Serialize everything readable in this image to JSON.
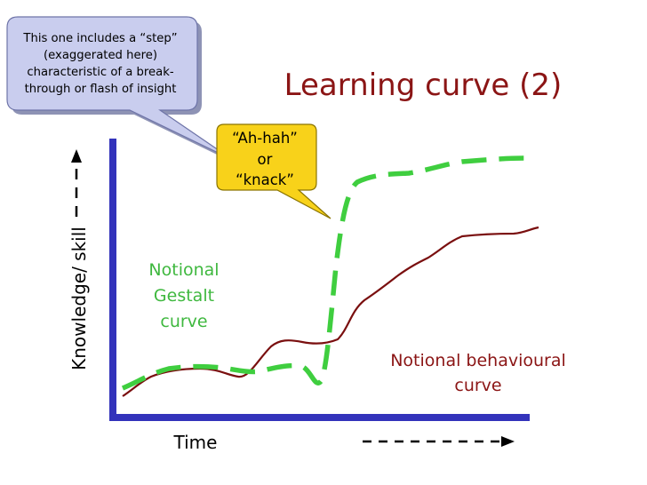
{
  "title": "Learning curve (2)",
  "callout": {
    "lines": [
      "This one includes a “step”",
      "(exaggerated here)",
      "characteristic of a break-",
      "through or flash of insight"
    ]
  },
  "bubble": {
    "lines": [
      "“Ah-hah”",
      "or",
      "“knack”"
    ]
  },
  "y_axis_label": "Knowledge/ skill",
  "x_axis_label": "Time",
  "gestalt_label": [
    "Notional",
    "Gestalt",
    "curve"
  ],
  "behavioural_label": [
    "Notional behavioural",
    "curve"
  ],
  "colors": {
    "title": "#8b1515",
    "behavioural_curve": "#7a0f0f",
    "gestalt_curve": "#3fce3f",
    "axes": "#3333bb",
    "callout_fill": "#c9cdee",
    "bubble_fill": "#f8d21a"
  },
  "icons": {
    "y_arrow": "dashed-up-arrow",
    "x_arrow": "dashed-right-arrow"
  }
}
